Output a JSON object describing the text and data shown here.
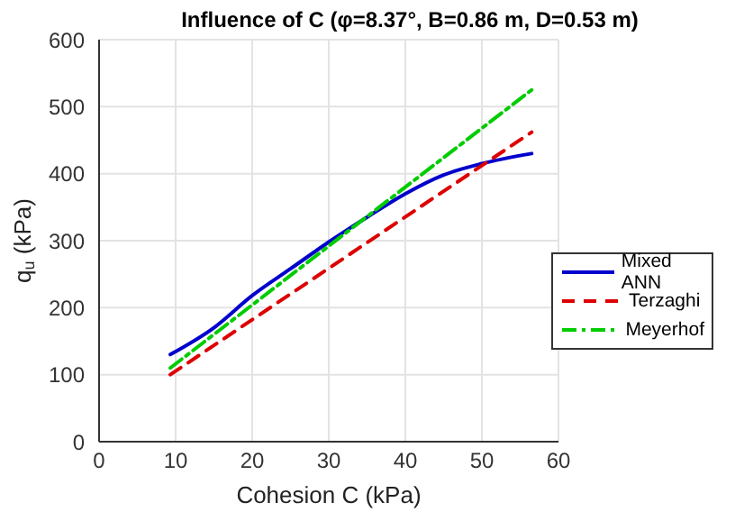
{
  "chart_data": {
    "type": "line",
    "title": "Influence of C (φ=8.37°, B=0.86 m, D=0.53 m)",
    "xlabel": "Cohesion C (kPa)",
    "ylabel": "q$_{u}$ (kPa)",
    "xlim": [
      0,
      60
    ],
    "xticks": [
      0,
      10,
      20,
      30,
      40,
      50,
      60
    ],
    "ylim": [
      0,
      600
    ],
    "yticks": [
      0,
      100,
      200,
      300,
      400,
      500,
      600
    ],
    "grid": true,
    "legend": "right",
    "marker": "none",
    "series": [
      {
        "name": "Mixed ANN",
        "color": "#0000cc",
        "line_style": "solid",
        "x": [
          9.3,
          15,
          20,
          25,
          30,
          35,
          40,
          45,
          50,
          56.5
        ],
        "values": [
          130,
          170,
          218,
          258,
          298,
          335,
          370,
          398,
          415,
          430
        ]
      },
      {
        "name": "Terzaghi",
        "color": "#dd0000",
        "line_style": "dashed",
        "x": [
          9.3,
          56.5
        ],
        "values": [
          100,
          462
        ]
      },
      {
        "name": "Meyerhof",
        "color": "#00cc00",
        "line_style": "dashdot",
        "x": [
          9.3,
          56.5
        ],
        "values": [
          110,
          525
        ]
      }
    ]
  }
}
